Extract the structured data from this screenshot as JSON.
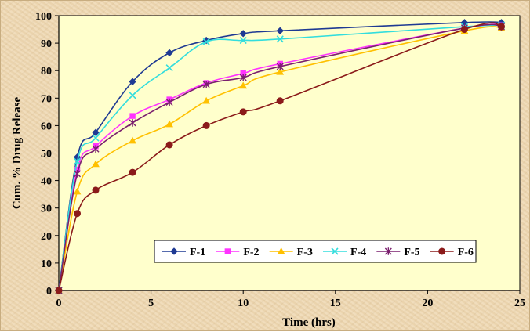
{
  "chart_data": {
    "type": "line",
    "xlabel": "Time (hrs)",
    "ylabel": "Cum. % Drug Release",
    "xlim": [
      0,
      25
    ],
    "ylim": [
      0,
      100
    ],
    "xticks": [
      0,
      5,
      10,
      15,
      20,
      25
    ],
    "yticks": [
      0,
      10,
      20,
      30,
      40,
      50,
      60,
      70,
      80,
      90,
      100
    ],
    "grid": false,
    "legend_position": "bottom-right",
    "background_color": "#ffffcc",
    "series": [
      {
        "name": "F-1",
        "color": "#1f3a93",
        "marker": "diamond",
        "x": [
          0,
          1,
          2,
          4,
          6,
          8,
          10,
          12,
          22,
          24
        ],
        "y": [
          0,
          48.5,
          57.5,
          76,
          86.5,
          91,
          93.5,
          94.5,
          97.5,
          97.5
        ]
      },
      {
        "name": "F-2",
        "color": "#ff33ff",
        "marker": "square",
        "x": [
          0,
          1,
          2,
          4,
          6,
          8,
          10,
          12,
          22,
          24
        ],
        "y": [
          0,
          44,
          52.5,
          63.5,
          69.5,
          75.5,
          79,
          82.5,
          95.5,
          96.5
        ]
      },
      {
        "name": "F-3",
        "color": "#ffc000",
        "marker": "triangle",
        "x": [
          0,
          1,
          2,
          4,
          6,
          8,
          10,
          12,
          22,
          24
        ],
        "y": [
          0,
          36,
          46,
          54.5,
          60.5,
          69,
          74.5,
          79.5,
          94.5,
          95.5
        ]
      },
      {
        "name": "F-4",
        "color": "#33dddd",
        "marker": "x",
        "x": [
          0,
          1,
          2,
          4,
          6,
          8,
          10,
          12,
          22,
          24
        ],
        "y": [
          0,
          47,
          55.5,
          71,
          81,
          90.5,
          91,
          91.5,
          96,
          96.5
        ]
      },
      {
        "name": "F-5",
        "color": "#7a1f6e",
        "marker": "star",
        "x": [
          0,
          1,
          2,
          4,
          6,
          8,
          10,
          12,
          22,
          24
        ],
        "y": [
          0,
          42.5,
          51.5,
          61,
          68.5,
          75,
          77.5,
          81.5,
          95.5,
          96
        ]
      },
      {
        "name": "F-6",
        "color": "#8b1a1a",
        "marker": "circle",
        "x": [
          0,
          1,
          2,
          4,
          6,
          8,
          10,
          12,
          22,
          24
        ],
        "y": [
          0,
          28,
          36.5,
          43,
          53,
          60,
          65,
          69,
          95,
          96
        ]
      }
    ]
  }
}
